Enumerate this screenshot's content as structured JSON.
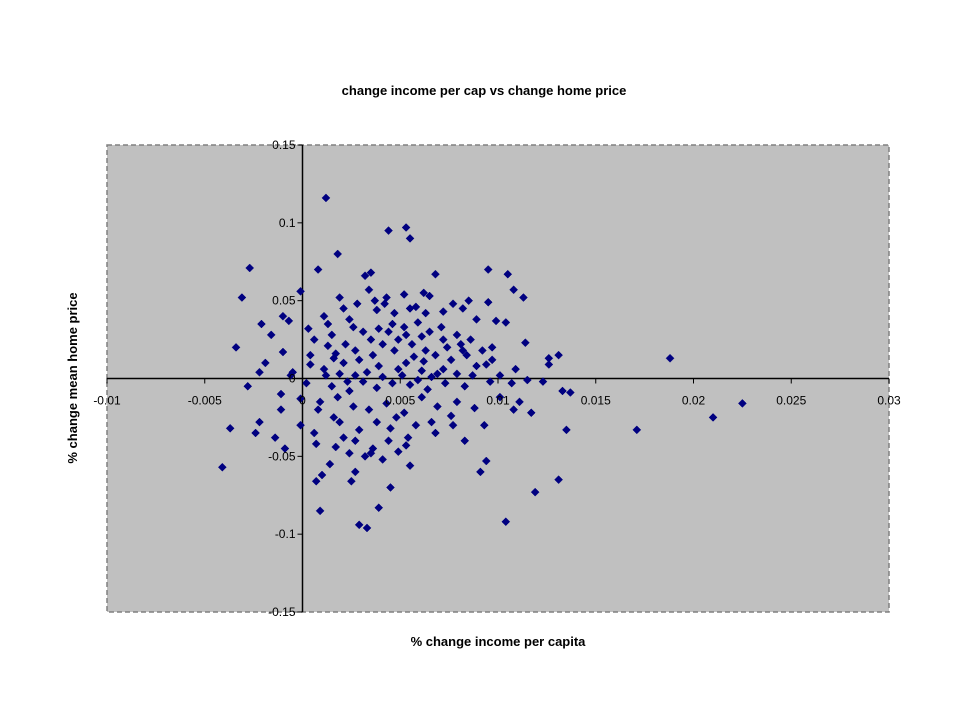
{
  "chart_data": {
    "type": "scatter",
    "title": "change income per cap vs change home price",
    "xlabel": "% change income per capita",
    "ylabel": "% change mean home price",
    "xlim": [
      -0.01,
      0.03
    ],
    "ylim": [
      -0.15,
      0.15
    ],
    "x_ticks": [
      -0.01,
      -0.005,
      0,
      0.005,
      0.01,
      0.015,
      0.02,
      0.025,
      0.03
    ],
    "y_ticks": [
      -0.15,
      -0.1,
      -0.05,
      0,
      0.05,
      0.1,
      0.15
    ],
    "x_tick_labels": [
      "-0.01",
      "-0.005",
      "0",
      "0.005",
      "0.01",
      "0.015",
      "0.02",
      "0.025",
      "0.03"
    ],
    "y_tick_labels": [
      "-0.15",
      "-0.1",
      "-0.05",
      "0",
      "0.05",
      "0.1",
      "0.15"
    ],
    "grid": false,
    "legend": "none",
    "colors": {
      "plot_background": "#c0c0c0",
      "marker": "#000080",
      "axis": "#000000",
      "border": "#808080"
    },
    "points": [
      [
        0.0012,
        0.116
      ],
      [
        -0.0027,
        0.071
      ],
      [
        0.0008,
        0.07
      ],
      [
        0.0018,
        0.08
      ],
      [
        0.0044,
        0.095
      ],
      [
        0.0053,
        0.097
      ],
      [
        0.0055,
        0.09
      ],
      [
        -0.0031,
        0.052
      ],
      [
        0.0032,
        0.066
      ],
      [
        0.0035,
        0.068
      ],
      [
        0.0095,
        0.07
      ],
      [
        0.0105,
        0.067
      ],
      [
        0.0108,
        0.057
      ],
      [
        0.0113,
        0.052
      ],
      [
        0.0068,
        0.067
      ],
      [
        -0.0001,
        0.056
      ],
      [
        0.0065,
        0.053
      ],
      [
        0.0085,
        0.05
      ],
      [
        0.0095,
        0.049
      ],
      [
        0.0042,
        0.048
      ],
      [
        0.0052,
        0.054
      ],
      [
        0.0028,
        0.048
      ],
      [
        -0.001,
        0.04
      ],
      [
        -0.0007,
        0.037
      ],
      [
        0.0011,
        0.04
      ],
      [
        0.0013,
        0.035
      ],
      [
        0.0024,
        0.038
      ],
      [
        0.0038,
        0.044
      ],
      [
        0.0058,
        0.046
      ],
      [
        0.0072,
        0.043
      ],
      [
        0.0099,
        0.037
      ],
      [
        0.0104,
        0.036
      ],
      [
        0.0114,
        0.023
      ],
      [
        -0.0034,
        0.02
      ],
      [
        -0.001,
        0.017
      ],
      [
        -0.0005,
        0.004
      ],
      [
        0.0016,
        0.013
      ],
      [
        0.0021,
        0.01
      ],
      [
        0.0027,
        0.018
      ],
      [
        0.0035,
        0.025
      ],
      [
        0.0044,
        0.03
      ],
      [
        0.0049,
        0.025
      ],
      [
        0.0056,
        0.022
      ],
      [
        0.0063,
        0.018
      ],
      [
        0.0068,
        0.015
      ],
      [
        0.0074,
        0.02
      ],
      [
        0.0081,
        0.022
      ],
      [
        0.0092,
        0.018
      ],
      [
        0.0131,
        0.015
      ],
      [
        0.0126,
        0.013
      ],
      [
        0.0188,
        0.013
      ],
      [
        0.0011,
        0.006
      ],
      [
        0.0019,
        0.003
      ],
      [
        0.0027,
        0.002
      ],
      [
        0.0033,
        0.004
      ],
      [
        0.0041,
        0.001
      ],
      [
        0.0049,
        0.006
      ],
      [
        0.0053,
        0.01
      ],
      [
        0.0061,
        0.005
      ],
      [
        0.0066,
        0.001
      ],
      [
        0.0072,
        0.006
      ],
      [
        0.0079,
        0.003
      ],
      [
        0.0089,
        0.008
      ],
      [
        0.0097,
        0.012
      ],
      [
        0.0109,
        0.006
      ],
      [
        0.0126,
        0.009
      ],
      [
        -0.0006,
        0.002
      ],
      [
        0.0002,
        -0.003
      ],
      [
        0.0015,
        -0.005
      ],
      [
        0.0024,
        -0.008
      ],
      [
        0.0031,
        -0.002
      ],
      [
        0.0038,
        -0.006
      ],
      [
        0.0046,
        -0.003
      ],
      [
        0.0055,
        -0.004
      ],
      [
        0.0064,
        -0.007
      ],
      [
        0.0073,
        -0.003
      ],
      [
        0.0083,
        -0.005
      ],
      [
        0.0096,
        -0.002
      ],
      [
        0.0107,
        -0.003
      ],
      [
        0.0115,
        -0.001
      ],
      [
        0.0123,
        -0.002
      ],
      [
        -0.0028,
        -0.005
      ],
      [
        -0.0011,
        -0.01
      ],
      [
        -0.0001,
        -0.013
      ],
      [
        0.0009,
        -0.015
      ],
      [
        0.0018,
        -0.012
      ],
      [
        0.0026,
        -0.018
      ],
      [
        0.0034,
        -0.02
      ],
      [
        0.0043,
        -0.016
      ],
      [
        0.0052,
        -0.022
      ],
      [
        0.0061,
        -0.012
      ],
      [
        0.0069,
        -0.018
      ],
      [
        0.0079,
        -0.015
      ],
      [
        0.0088,
        -0.019
      ],
      [
        0.0101,
        -0.012
      ],
      [
        0.0108,
        -0.02
      ],
      [
        0.0117,
        -0.022
      ],
      [
        0.0133,
        -0.008
      ],
      [
        0.0137,
        -0.009
      ],
      [
        -0.0011,
        -0.02
      ],
      [
        -0.0001,
        -0.03
      ],
      [
        0.0006,
        -0.035
      ],
      [
        0.0019,
        -0.028
      ],
      [
        0.0027,
        -0.04
      ],
      [
        0.0036,
        -0.045
      ],
      [
        0.0045,
        -0.032
      ],
      [
        0.0054,
        -0.038
      ],
      [
        0.0066,
        -0.028
      ],
      [
        0.0076,
        -0.024
      ],
      [
        0.0093,
        -0.03
      ],
      [
        0.0111,
        -0.015
      ],
      [
        0.0135,
        -0.033
      ],
      [
        0.0171,
        -0.033
      ],
      [
        0.021,
        -0.025
      ],
      [
        0.0225,
        -0.016
      ],
      [
        -0.0037,
        -0.032
      ],
      [
        -0.0009,
        -0.045
      ],
      [
        -0.0024,
        -0.035
      ],
      [
        0.0014,
        -0.055
      ],
      [
        0.0024,
        -0.048
      ],
      [
        0.0032,
        -0.05
      ],
      [
        0.0041,
        -0.052
      ],
      [
        0.0049,
        -0.047
      ],
      [
        0.0055,
        -0.056
      ],
      [
        0.0094,
        -0.053
      ],
      [
        0.0091,
        -0.06
      ],
      [
        -0.0041,
        -0.057
      ],
      [
        0.0007,
        -0.066
      ],
      [
        0.001,
        -0.062
      ],
      [
        0.0025,
        -0.066
      ],
      [
        0.0039,
        -0.083
      ],
      [
        0.0045,
        -0.07
      ],
      [
        0.0119,
        -0.073
      ],
      [
        0.0131,
        -0.065
      ],
      [
        0.0009,
        -0.085
      ],
      [
        0.0029,
        -0.094
      ],
      [
        0.0033,
        -0.096
      ],
      [
        0.0104,
        -0.092
      ],
      [
        0.0006,
        0.025
      ],
      [
        0.0015,
        0.028
      ],
      [
        0.0022,
        0.022
      ],
      [
        0.0031,
        0.03
      ],
      [
        0.0039,
        0.032
      ],
      [
        0.0046,
        0.035
      ],
      [
        0.0052,
        0.033
      ],
      [
        0.0059,
        0.036
      ],
      [
        0.0065,
        0.03
      ],
      [
        0.0071,
        0.033
      ],
      [
        0.0079,
        0.028
      ],
      [
        0.0086,
        0.025
      ],
      [
        0.0004,
        0.015
      ],
      [
        0.0017,
        0.016
      ],
      [
        0.0029,
        0.012
      ],
      [
        0.0036,
        0.015
      ],
      [
        0.0047,
        0.018
      ],
      [
        0.0057,
        0.014
      ],
      [
        0.0062,
        0.011
      ],
      [
        0.0076,
        0.012
      ],
      [
        0.0084,
        0.015
      ],
      [
        0.0094,
        0.009
      ],
      [
        -0.0021,
        0.035
      ],
      [
        -0.0016,
        0.028
      ],
      [
        0.0003,
        0.032
      ],
      [
        0.0021,
        0.045
      ],
      [
        0.0037,
        0.05
      ],
      [
        0.0047,
        0.042
      ],
      [
        0.0062,
        0.055
      ],
      [
        0.0077,
        0.048
      ],
      [
        0.0089,
        0.038
      ],
      [
        0.0008,
        -0.02
      ],
      [
        0.0016,
        -0.025
      ],
      [
        0.0021,
        -0.038
      ],
      [
        0.0029,
        -0.033
      ],
      [
        0.0038,
        -0.028
      ],
      [
        0.0048,
        -0.025
      ],
      [
        0.0058,
        -0.03
      ],
      [
        0.0068,
        -0.035
      ],
      [
        0.0083,
        -0.04
      ],
      [
        0.0019,
        0.052
      ],
      [
        0.0034,
        0.057
      ],
      [
        0.0043,
        0.052
      ],
      [
        0.0055,
        0.045
      ],
      [
        0.0063,
        0.042
      ],
      [
        0.0082,
        0.045
      ],
      [
        0.0012,
        0.002
      ],
      [
        0.0023,
        -0.002
      ],
      [
        0.0039,
        0.008
      ],
      [
        0.0051,
        0.002
      ],
      [
        0.0059,
        -0.001
      ],
      [
        0.0069,
        0.003
      ],
      [
        0.0087,
        0.002
      ],
      [
        0.0101,
        0.002
      ],
      [
        -0.0022,
        0.004
      ],
      [
        -0.0019,
        0.01
      ],
      [
        0.0004,
        0.009
      ],
      [
        0.0013,
        0.021
      ],
      [
        0.0026,
        0.033
      ],
      [
        0.0041,
        0.022
      ],
      [
        0.0053,
        0.028
      ],
      [
        0.0061,
        0.027
      ],
      [
        0.0072,
        0.025
      ],
      [
        0.0082,
        0.018
      ],
      [
        0.0097,
        0.02
      ],
      [
        -0.0014,
        -0.038
      ],
      [
        -0.0022,
        -0.028
      ],
      [
        0.0007,
        -0.042
      ],
      [
        0.0017,
        -0.044
      ],
      [
        0.0027,
        -0.06
      ],
      [
        0.0035,
        -0.048
      ],
      [
        0.0044,
        -0.04
      ],
      [
        0.0053,
        -0.043
      ],
      [
        0.0077,
        -0.03
      ]
    ]
  }
}
